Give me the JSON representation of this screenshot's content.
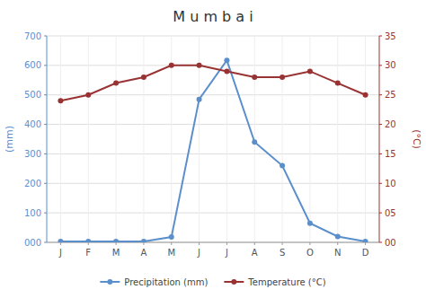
{
  "chart_data": {
    "type": "line",
    "title": "M u m b a i",
    "categories": [
      "J",
      "F",
      "M",
      "A",
      "M",
      "J",
      "J",
      "A",
      "S",
      "O",
      "N",
      "D"
    ],
    "series": [
      {
        "name": "Precipitation (mm)",
        "color": "#5b8fcc",
        "marker": "circle",
        "axis": "y",
        "values": [
          3,
          3,
          3,
          3,
          18,
          485,
          617,
          340,
          260,
          65,
          20,
          3
        ]
      },
      {
        "name": "Temperature (°C)",
        "color": "#993333",
        "marker": "circle",
        "axis": "y2",
        "values": [
          24,
          25,
          27,
          28,
          30,
          30,
          29,
          28,
          28,
          29,
          27,
          25
        ]
      }
    ],
    "ylabel": "(mm)",
    "y2label": "(°C)",
    "ylim": [
      0,
      700
    ],
    "yticks": [
      {
        "value": 0,
        "label": "000"
      },
      100,
      200,
      300,
      400,
      500,
      600,
      700
    ],
    "y2lim": [
      0,
      35
    ],
    "y2ticks": [
      {
        "value": 0,
        "label": "00"
      },
      {
        "value": 5,
        "label": "05"
      },
      10,
      15,
      20,
      25,
      30,
      35
    ],
    "grid": true,
    "legend": "bottom"
  }
}
